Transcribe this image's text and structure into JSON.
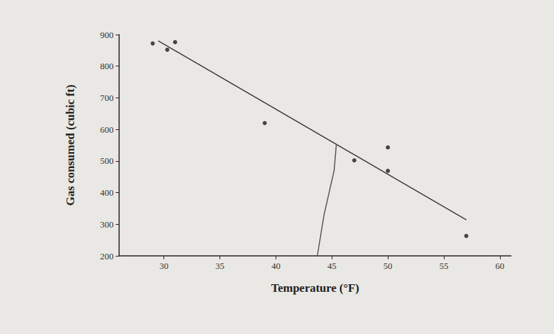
{
  "chart_data": {
    "type": "scatter",
    "x_label": "Temperature (°F)",
    "y_label": "Gas consumed (cubic ft)",
    "series": [
      {
        "type": "scatter",
        "x": [
          29,
          30.3,
          31,
          39,
          47,
          50,
          50,
          57
        ],
        "values": [
          872,
          852,
          876,
          620,
          502,
          543,
          469,
          263
        ],
        "color": "#1a1a1a",
        "marker": "circle"
      },
      {
        "type": "line",
        "x": [
          29.5,
          57
        ],
        "values": [
          880,
          314
        ],
        "color": "#3a3a3a",
        "line_style": "solid"
      },
      {
        "type": "line",
        "x": [
          45.4,
          45.2,
          44.3,
          43.7
        ],
        "values": [
          554,
          470,
          330,
          200
        ],
        "color": "#555555",
        "line_style": "solid"
      }
    ],
    "xlim": [
      26,
      61
    ],
    "xticks": [
      30,
      35,
      40,
      45,
      50,
      55,
      60
    ],
    "ylim": [
      200,
      900
    ],
    "yticks": [
      200,
      300,
      400,
      500,
      600,
      700,
      800,
      900
    ],
    "grid": false
  }
}
